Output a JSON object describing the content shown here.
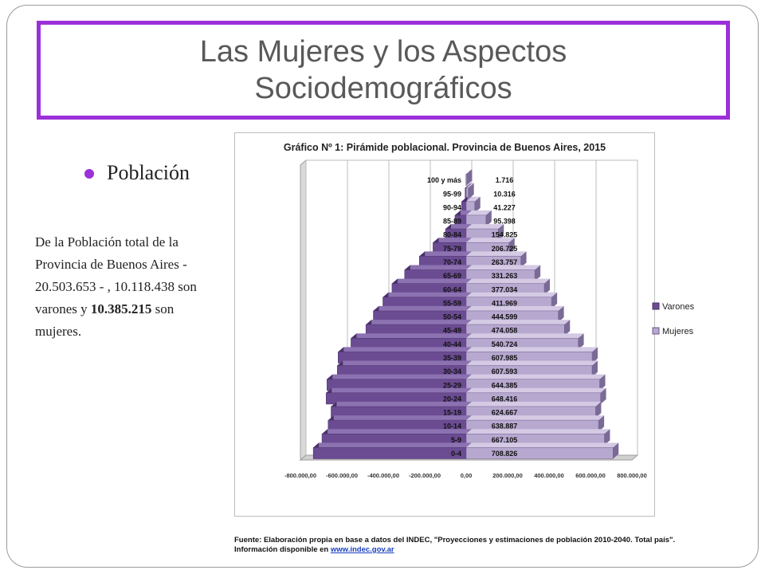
{
  "slide": {
    "title_line1": "Las Mujeres y los Aspectos",
    "title_line2": "Sociodemográficos",
    "bullet": "Población",
    "para_a": "De la Población total de la Provincia de Buenos Aires - 20.503.653 - , 10.118.438 son varones y ",
    "para_bold": "10.385.215",
    "para_b": " son mujeres."
  },
  "source": {
    "line1": "Fuente: Elaboración propia en base a datos del INDEC, \"Proyecciones y estimaciones de población 2010-2040. Total país\".",
    "line2_prefix": "Información disponible en ",
    "line2_link": "www.indec.gov.ar"
  },
  "colors": {
    "accent": "#9b30d9",
    "varones": "#6b4c93",
    "mujeres": "#b6a8cf"
  },
  "chart_data": {
    "type": "bar",
    "orientation": "horizontal-pyramid",
    "title": "Gráfico Nº 1: Pirámide poblacional. Provincia de Buenos Aires, 2015",
    "categories": [
      "0-4",
      "5-9",
      "10-14",
      "15-19",
      "20-24",
      "25-29",
      "30-34",
      "35-39",
      "40-44",
      "45-49",
      "50-54",
      "55-59",
      "60-64",
      "65-69",
      "70-74",
      "75-79",
      "80-84",
      "85-89",
      "90-94",
      "95-99",
      "100 y más"
    ],
    "series": [
      {
        "name": "Varones",
        "values": [
          -738000,
          -696000,
          -666000,
          -652000,
          -676000,
          -672000,
          -622000,
          -618000,
          -556000,
          -484000,
          -448000,
          -402000,
          -358000,
          -297000,
          -226000,
          -160000,
          -100000,
          -54000,
          -22000,
          -5000,
          -800
        ]
      },
      {
        "name": "Mujeres",
        "values": [
          708826,
          667105,
          638887,
          624667,
          648416,
          644385,
          607593,
          607985,
          540724,
          474058,
          444599,
          411969,
          377034,
          331263,
          263757,
          206725,
          154825,
          95398,
          41227,
          10316,
          1716
        ]
      }
    ],
    "data_labels": [
      "708.826",
      "667.105",
      "638.887",
      "624.667",
      "648.416",
      "644.385",
      "607.593",
      "607.985",
      "540.724",
      "474.058",
      "444.599",
      "411.969",
      "377.034",
      "331.263",
      "263.757",
      "206.725",
      "154.825",
      "95.398",
      "41.227",
      "10.316",
      "1.716"
    ],
    "x_ticks": [
      "-800.000,00",
      "-600.000,00",
      "-400.000,00",
      "-200.000,00",
      "0,00",
      "200.000,00",
      "400.000,00",
      "600.000,00",
      "800.000,00"
    ],
    "xlim": [
      -800000,
      800000
    ],
    "grid": true,
    "legend": "right"
  }
}
